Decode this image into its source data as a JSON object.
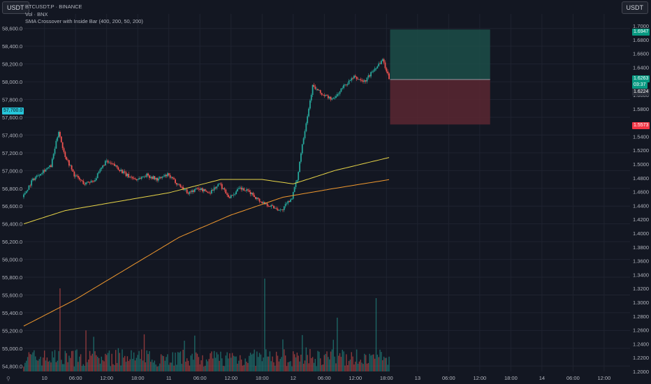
{
  "toolbar": {
    "left_currency": "USDT",
    "right_currency": "USDT",
    "corner_icon": "zoom-icon"
  },
  "legend": {
    "line1": "BTCUSDT.P · BINANCE",
    "line2": "Vol · BNX",
    "line3": "SMA Crossover with Inside Bar (400, 200, 50, 200)"
  },
  "tags": {
    "left_price": "57,700.0",
    "tp": "1.6947",
    "current_price": "1.6263",
    "countdown": "03:37",
    "entry": "1.6224",
    "sl": "1.5573"
  },
  "colors": {
    "background": "#131722",
    "grid": "#1f2330",
    "up": "#26a69a",
    "down": "#ef5350",
    "sma_fast": "#e8d548",
    "sma_slow": "#f0982e",
    "profit_zone": "#1c4d48",
    "loss_zone": "#5a2731",
    "left_tag": "#26c6da",
    "tp_tag": "#089981",
    "sl_tag": "#f23645"
  },
  "chart_data": {
    "type": "candlestick",
    "left_axis": {
      "range": [
        54700,
        58700
      ],
      "ticks": [
        54800,
        55000,
        55200,
        55400,
        55600,
        55800,
        56000,
        56200,
        56400,
        56600,
        56800,
        57000,
        57200,
        57400,
        57600,
        57800,
        58000,
        58200,
        58400,
        58600
      ],
      "tick_labels": [
        "54,800.0",
        "55,000.0",
        "55,200.0",
        "55,400.0",
        "55,600.0",
        "55,800.0",
        "56,000.0",
        "56,200.0",
        "56,400.0",
        "56,600.0",
        "56,800.0",
        "57,000.0",
        "57,200.0",
        "57,400.0",
        "57,600.0",
        "57,800.0",
        "58,000.0",
        "58,200.0",
        "58,400.0",
        "58,600.0"
      ]
    },
    "right_axis": {
      "range": [
        1.2,
        1.7
      ],
      "ticks": [
        1.2,
        1.22,
        1.24,
        1.26,
        1.28,
        1.3,
        1.32,
        1.34,
        1.36,
        1.38,
        1.4,
        1.42,
        1.44,
        1.46,
        1.48,
        1.5,
        1.52,
        1.54,
        1.58,
        1.6,
        1.64,
        1.66,
        1.68,
        1.7
      ],
      "tick_labels": [
        "1.2000",
        "1.2200",
        "1.2400",
        "1.2600",
        "1.2800",
        "1.3000",
        "1.3200",
        "1.3400",
        "1.3600",
        "1.3800",
        "1.4000",
        "1.4200",
        "1.4400",
        "1.4600",
        "1.4800",
        "1.5000",
        "1.5200",
        "1.5400",
        "1.5800",
        "1.6000",
        "1.6400",
        "1.6600",
        "1.6800",
        "1.7000"
      ]
    },
    "time_axis": {
      "labels": [
        "10",
        "06:00",
        "12:00",
        "18:00",
        "11",
        "06:00",
        "12:00",
        "18:00",
        "12",
        "06:00",
        "12:00",
        "18:00",
        "13",
        "06:00",
        "12:00",
        "18:00",
        "14",
        "06:00",
        "12:00"
      ],
      "hours_from_start": [
        6,
        12,
        18,
        24,
        30,
        36,
        42,
        48,
        54,
        60,
        66,
        72,
        78,
        84,
        90,
        96,
        102,
        108,
        114
      ],
      "last_bar_hours": 72.7,
      "visible_range_hours": [
        2,
        119
      ]
    },
    "candles_anchor_closes": [
      [
        2,
        56700
      ],
      [
        4,
        56900
      ],
      [
        6,
        57000
      ],
      [
        7.5,
        57050
      ],
      [
        9,
        57450
      ],
      [
        10,
        57200
      ],
      [
        12,
        56950
      ],
      [
        14,
        56850
      ],
      [
        16,
        56900
      ],
      [
        18,
        57100
      ],
      [
        20,
        57050
      ],
      [
        22,
        56950
      ],
      [
        24,
        56900
      ],
      [
        26,
        56950
      ],
      [
        28,
        56900
      ],
      [
        30,
        56950
      ],
      [
        32,
        56850
      ],
      [
        34,
        56750
      ],
      [
        36,
        56800
      ],
      [
        38,
        56750
      ],
      [
        40,
        56850
      ],
      [
        42,
        56700
      ],
      [
        44,
        56800
      ],
      [
        46,
        56750
      ],
      [
        48,
        56650
      ],
      [
        50,
        56600
      ],
      [
        52,
        56550
      ],
      [
        54,
        56700
      ],
      [
        55,
        56900
      ],
      [
        56,
        57300
      ],
      [
        58,
        57950
      ],
      [
        60,
        57850
      ],
      [
        62,
        57800
      ],
      [
        64,
        57950
      ],
      [
        66,
        58050
      ],
      [
        68,
        58000
      ],
      [
        70,
        58150
      ],
      [
        71.5,
        58250
      ],
      [
        72.7,
        58050
      ]
    ],
    "sma_fast": [
      [
        2,
        56400
      ],
      [
        10,
        56550
      ],
      [
        20,
        56650
      ],
      [
        30,
        56750
      ],
      [
        40,
        56900
      ],
      [
        48,
        56900
      ],
      [
        54,
        56850
      ],
      [
        62,
        57000
      ],
      [
        72.7,
        57150
      ]
    ],
    "sma_slow": [
      [
        2,
        55250
      ],
      [
        12,
        55550
      ],
      [
        22,
        55900
      ],
      [
        32,
        56250
      ],
      [
        42,
        56500
      ],
      [
        52,
        56700
      ],
      [
        62,
        56800
      ],
      [
        72.7,
        56900
      ]
    ],
    "volume_max_bars": [
      [
        9,
        0.85
      ],
      [
        48.5,
        0.95
      ],
      [
        62.5,
        0.55
      ],
      [
        70,
        0.75
      ]
    ],
    "positions": {
      "tp": 1.6947,
      "entry": 1.6224,
      "sl": 1.5573,
      "start_hours": 72.7,
      "end_hours": 92
    }
  }
}
